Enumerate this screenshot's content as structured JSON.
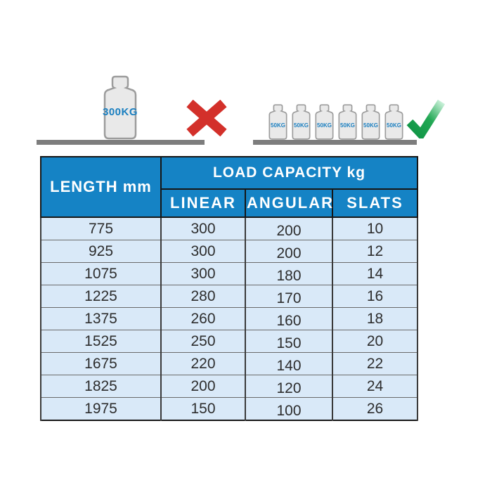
{
  "page": {
    "background": "#ffffff"
  },
  "illustration": {
    "wrong_scene": {
      "weight_label": "300KG",
      "icon": "cross-icon",
      "icon_color": "#d3302a"
    },
    "correct_scene": {
      "weight_labels": [
        "50KG",
        "50KG",
        "50KG",
        "50KG",
        "50KG",
        "50KG"
      ],
      "icon": "check-icon",
      "icon_color": "#16a04a"
    },
    "weight_fill": "#e9e9e9",
    "weight_outline": "#9c9c9c",
    "weight_label_color": "#1a7fc0",
    "shelf_color": "#7d7d7d"
  },
  "table": {
    "header_bg": "#1583c5",
    "row_bg": "#d9e9f8",
    "length_header": "LENGTH mm",
    "capacity_header": "LOAD CAPACITY kg",
    "sub_headers": [
      "LINEAR",
      "ANGULAR",
      "SLATS"
    ]
  },
  "chart_data": {
    "type": "table",
    "title": "LOAD CAPACITY kg",
    "columns": [
      "LENGTH mm",
      "LINEAR",
      "ANGULAR",
      "SLATS"
    ],
    "rows": [
      [
        775,
        300,
        200,
        10
      ],
      [
        925,
        300,
        200,
        12
      ],
      [
        1075,
        300,
        180,
        14
      ],
      [
        1225,
        280,
        170,
        16
      ],
      [
        1375,
        260,
        160,
        18
      ],
      [
        1525,
        250,
        150,
        20
      ],
      [
        1675,
        220,
        140,
        22
      ],
      [
        1825,
        200,
        120,
        24
      ],
      [
        1975,
        150,
        100,
        26
      ]
    ]
  }
}
